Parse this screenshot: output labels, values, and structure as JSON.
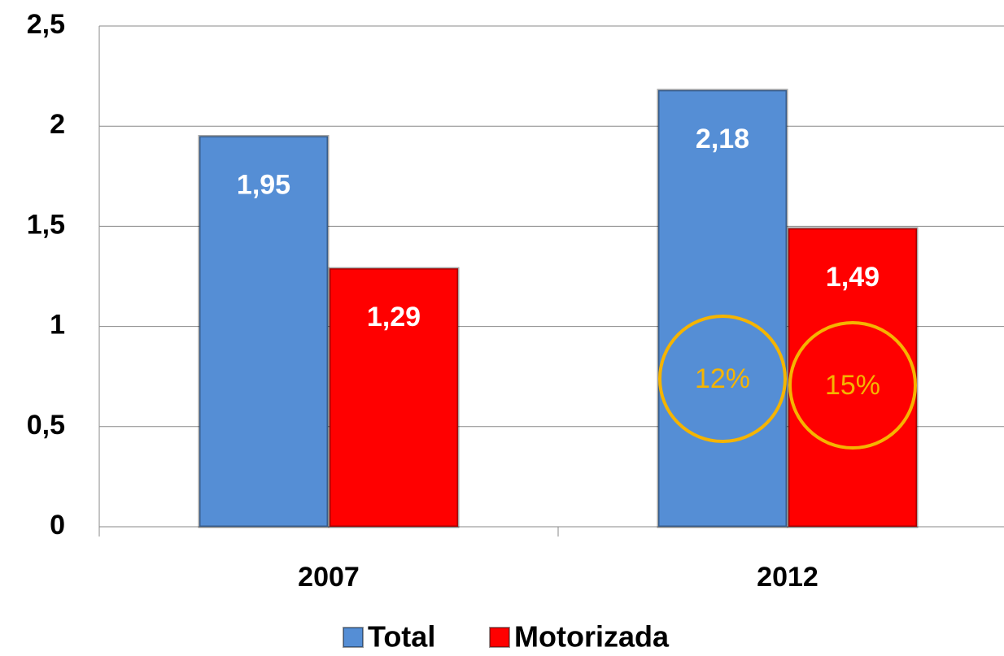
{
  "chart_data": {
    "type": "bar",
    "categories": [
      "2007",
      "2012"
    ],
    "series": [
      {
        "name": "Total",
        "color": "#558ed5",
        "values": [
          1.95,
          2.18
        ],
        "value_labels": [
          "1,95",
          "2,18"
        ]
      },
      {
        "name": "Motorizada",
        "color": "#ff0000",
        "values": [
          1.29,
          1.49
        ],
        "value_labels": [
          "1,29",
          "1,49"
        ]
      }
    ],
    "annotations": [
      "12%",
      "15%"
    ],
    "ylim": [
      0,
      2.5
    ],
    "yticks": [
      0,
      {
        "value": 0.5,
        "label": "0,5"
      },
      1,
      {
        "value": 1.5,
        "label": "1,5"
      },
      2,
      {
        "value": 2.5,
        "label": "2,5"
      }
    ],
    "grid": true,
    "legend": "bottom"
  }
}
